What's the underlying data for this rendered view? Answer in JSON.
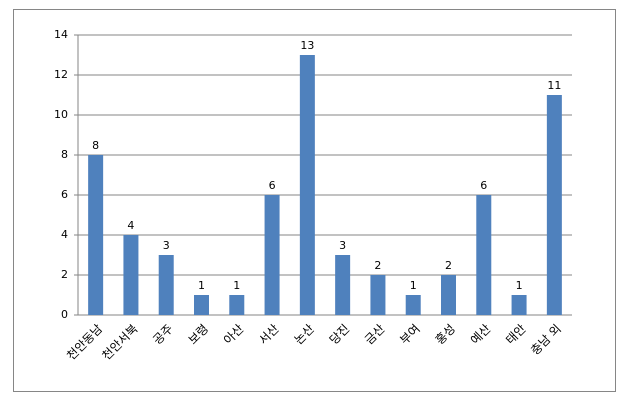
{
  "chart_data": {
    "type": "bar",
    "categories": [
      "천안동남",
      "천안서북",
      "공주",
      "보령",
      "아산",
      "서산",
      "논산",
      "당진",
      "금산",
      "부여",
      "홍성",
      "예산",
      "태안",
      "충남 외"
    ],
    "values": [
      8,
      4,
      3,
      1,
      1,
      6,
      13,
      3,
      2,
      1,
      2,
      6,
      1,
      11
    ],
    "color": "#4f81bd",
    "ylim": [
      0,
      14
    ],
    "yticks": [
      0,
      2,
      4,
      6,
      8,
      10,
      12,
      14
    ],
    "grid": true
  }
}
